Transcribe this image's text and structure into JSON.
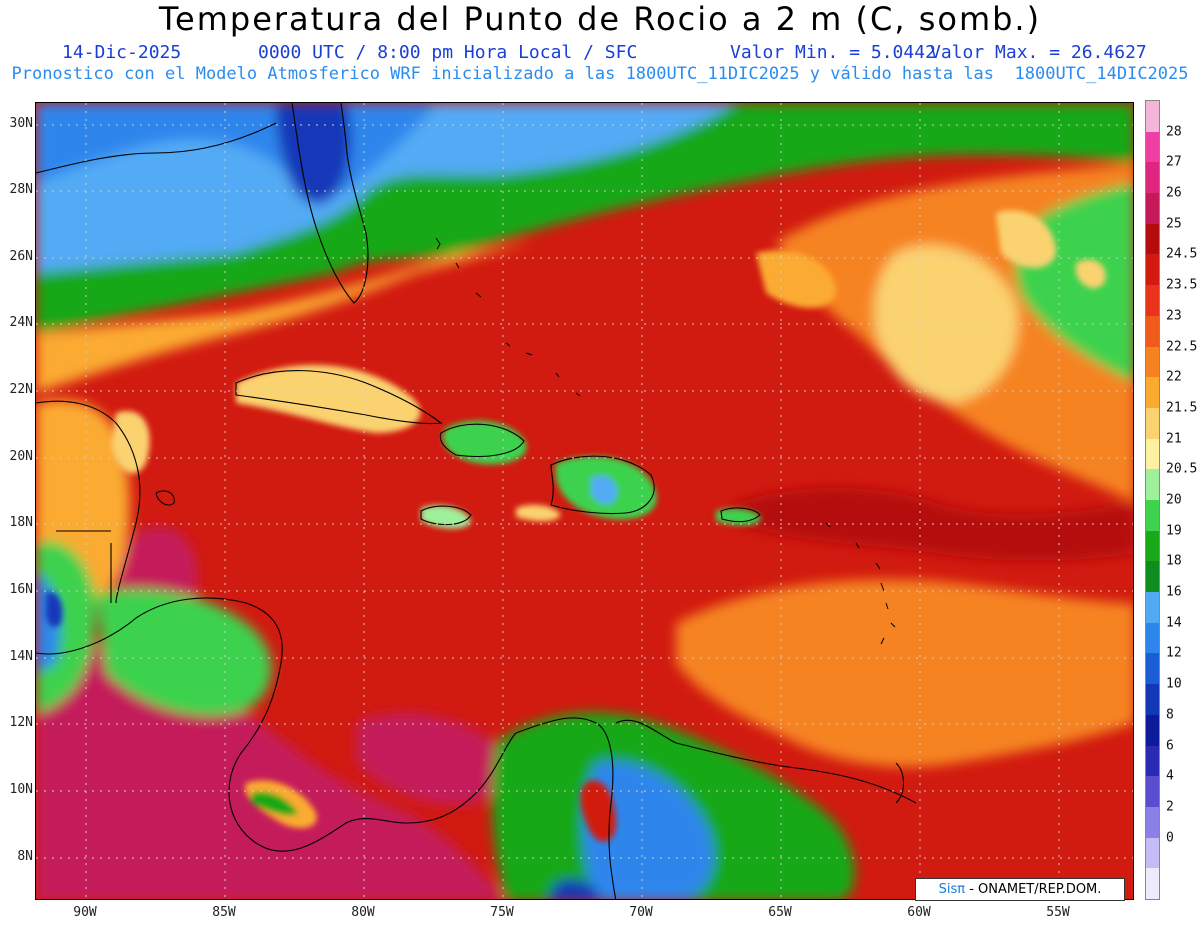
{
  "title": "Temperatura del Punto de Rocio a 2 m (C, somb.)",
  "subtitle": {
    "date": "14-Dic-2025",
    "time": "0000 UTC / 8:00 pm Hora Local / SFC",
    "min": "Valor Min. = 5.0442",
    "max": "Valor Max. = 26.4627"
  },
  "model_line": "Pronostico con el Modelo Atmosferico WRF inicializado a las 1800UTC_11DIC2025 y válido hasta las  1800UTC_14DIC2025",
  "lat_labels": [
    "30N",
    "28N",
    "26N",
    "24N",
    "22N",
    "20N",
    "18N",
    "16N",
    "14N",
    "12N",
    "10N",
    "8N"
  ],
  "lon_labels": [
    "90W",
    "85W",
    "80W",
    "75W",
    "70W",
    "65W",
    "60W",
    "55W"
  ],
  "colorbar": {
    "labels": [
      "28",
      "27",
      "26",
      "25",
      "24.5",
      "23.5",
      "23",
      "22.5",
      "22",
      "21.5",
      "21",
      "20.5",
      "20",
      "19",
      "18",
      "16",
      "14",
      "12",
      "10",
      "8",
      "6",
      "4",
      "2",
      "0"
    ],
    "colors": [
      "#f4b6d8",
      "#ef3fa5",
      "#e0267f",
      "#c41a5a",
      "#b50d0d",
      "#d11a10",
      "#e8341a",
      "#f05a1a",
      "#f68320",
      "#fbaa30",
      "#fbd270",
      "#fdf0a0",
      "#9ef09a",
      "#3ed24e",
      "#18a818",
      "#0f8c1e",
      "#52aaf5",
      "#2d86ec",
      "#1a5ed6",
      "#1238b8",
      "#0d1a9a",
      "#2a2ab4",
      "#5a4ed0",
      "#8a80e6",
      "#c4bcf4",
      "#ecebfb"
    ]
  },
  "credit": {
    "brand": "Sisπ",
    "org": " - ONAMET/REP.DOM."
  }
}
